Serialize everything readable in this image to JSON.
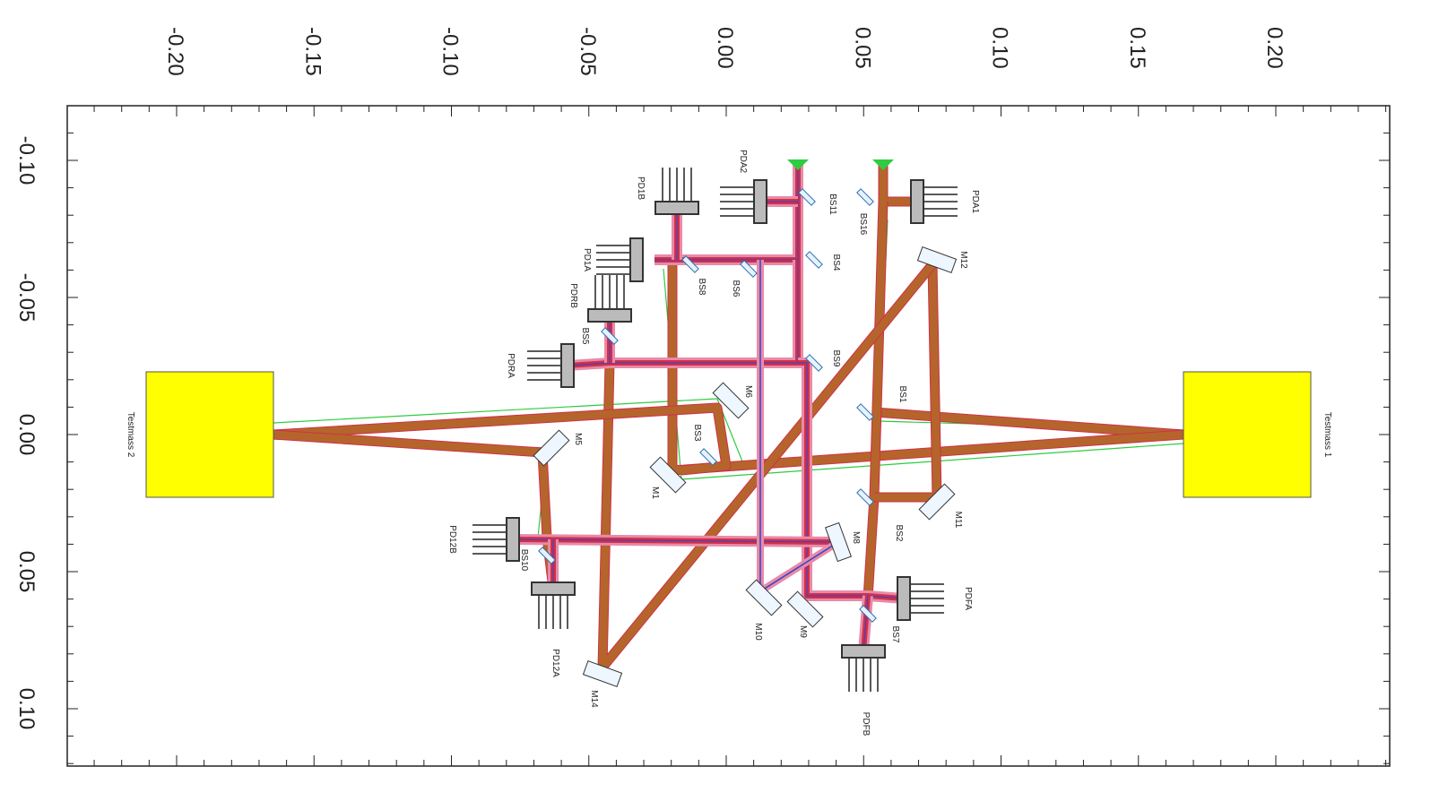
{
  "axes": {
    "x_ticks": [
      "-0.20",
      "-0.15",
      "-0.10",
      "-0.05",
      "0.00",
      "0.05",
      "0.10",
      "0.15",
      "0.20"
    ],
    "y_ticks": [
      "-0.10",
      "-0.05",
      "0.00",
      "0.05",
      "0.10"
    ]
  },
  "test_masses": [
    "Testmass 2",
    "Testmass 1"
  ],
  "detectors": [
    "PDA2",
    "PDA1",
    "PD1B",
    "PD1A",
    "PDRB",
    "PDRA",
    "PD12B",
    "PD12A",
    "PDFA",
    "PDFB"
  ],
  "beamsplitters": [
    "BS11",
    "BS16",
    "BS4",
    "BS8",
    "BS6",
    "BS5",
    "BS9",
    "BS1",
    "BS3",
    "BS2",
    "BS7",
    "BS10"
  ],
  "mirrors": [
    "M12",
    "M6",
    "M5",
    "M1",
    "M11",
    "M8",
    "M9",
    "M10",
    "M14"
  ]
}
